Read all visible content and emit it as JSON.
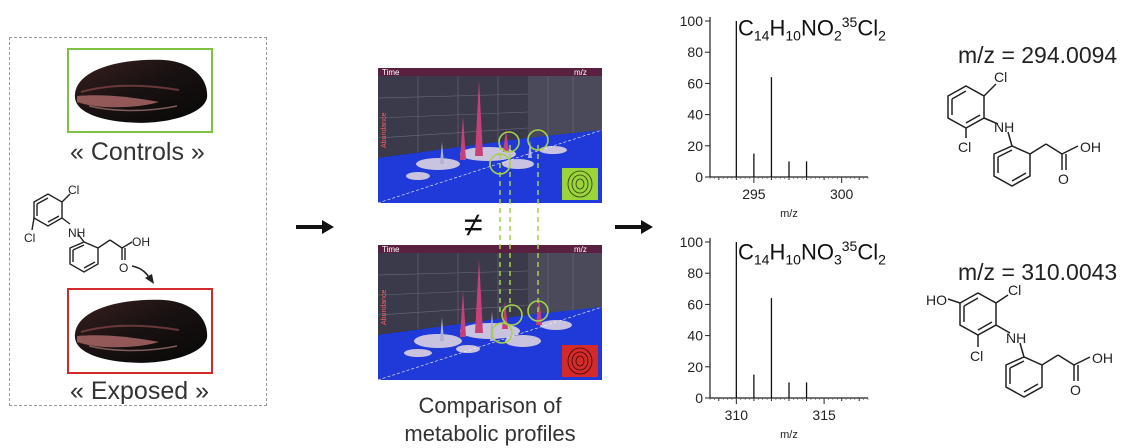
{
  "left_panel": {
    "controls_label": "« Controls »",
    "exposed_label": "« Exposed »",
    "structure_labels": {
      "cl_top": "Cl",
      "nh": "NH",
      "cl_bottom": "Cl",
      "oh": "OH",
      "o": "O"
    }
  },
  "middle": {
    "not_equal": "≠",
    "caption_line1": "Comparison of",
    "caption_line2": "metabolic profiles",
    "plot_labels": {
      "time": "Time",
      "mz": "m/z",
      "abundance": "Abundance"
    }
  },
  "colors": {
    "controls_frame": "#7dc242",
    "exposed_frame": "#d42a2a",
    "highlight_circle": "#a6d24a",
    "plot_blue": "#1a2ec8"
  },
  "spectra": {
    "top": {
      "formula_html": "C<sub>14</sub>H<sub>10</sub>NO<sub>2</sub><sup>35</sup>Cl<sub>2</sub>",
      "mz_label": "m/z = 294.0094",
      "x_axis_label": "m/z",
      "structure_labels": {
        "cl_top": "Cl",
        "nh": "NH",
        "cl_bottom": "Cl",
        "oh": "OH",
        "o": "O"
      }
    },
    "bottom": {
      "formula_html": "C<sub>14</sub>H<sub>10</sub>NO<sub>3</sub><sup>35</sup>Cl<sub>2</sub>",
      "mz_label": "m/z = 310.0043",
      "x_axis_label": "m/z",
      "structure_labels": {
        "ho": "HO",
        "cl_top": "Cl",
        "nh": "NH",
        "cl_bottom": "Cl",
        "oh": "OH",
        "o": "O"
      }
    }
  },
  "chart_data": [
    {
      "type": "bar",
      "title": "",
      "xlabel": "m/z",
      "ylabel": "",
      "xlim": [
        292.5,
        301.5
      ],
      "ylim": [
        0,
        100
      ],
      "x_ticks": [
        295,
        300
      ],
      "y_ticks": [
        0,
        20,
        40,
        60,
        80,
        100
      ],
      "x": [
        294,
        295,
        296,
        297,
        298
      ],
      "values": [
        100,
        15,
        64,
        10,
        10
      ]
    },
    {
      "type": "bar",
      "title": "",
      "xlabel": "m/z",
      "ylabel": "",
      "xlim": [
        308.5,
        317.5
      ],
      "ylim": [
        0,
        100
      ],
      "x_ticks": [
        310,
        315
      ],
      "y_ticks": [
        0,
        20,
        40,
        60,
        80,
        100
      ],
      "x": [
        310,
        311,
        312,
        313,
        314
      ],
      "values": [
        100,
        15,
        64,
        10,
        10
      ]
    }
  ]
}
